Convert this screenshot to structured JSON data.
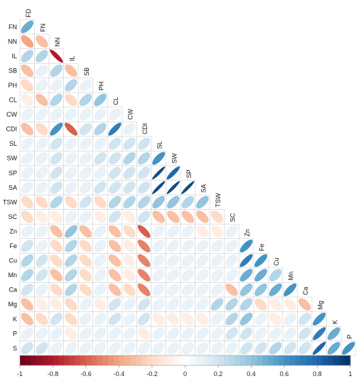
{
  "chart_data": {
    "type": "heatmap",
    "subtype": "correlogram-lower-triangle-ellipse",
    "variables": [
      "FD",
      "FN",
      "NN",
      "IL",
      "SB",
      "PH",
      "CL",
      "CW",
      "CDI",
      "SL",
      "SW",
      "SP",
      "SA",
      "TSW",
      "SC",
      "Zn",
      "Fe",
      "Cu",
      "Mn",
      "Ca",
      "Mg",
      "K",
      "P",
      "S"
    ],
    "matrix": [
      [
        0.5
      ],
      [
        -0.4,
        -0.3
      ],
      [
        0.3,
        0.3,
        -0.8
      ],
      [
        -0.3,
        0.1,
        0.3,
        -0.3
      ],
      [
        -0.2,
        0.1,
        0.1,
        0.3,
        0.1
      ],
      [
        -0.1,
        -0.3,
        0.3,
        -0.2,
        0.3,
        0.4
      ],
      [
        0.1,
        0.1,
        0.1,
        0.1,
        0.1,
        0.1,
        0.1
      ],
      [
        -0.3,
        -0.2,
        0.6,
        -0.6,
        0.2,
        0.3,
        0.7,
        0.1
      ],
      [
        0.1,
        0.1,
        0.2,
        0.1,
        0.1,
        0.1,
        0.2,
        0.2,
        0.2
      ],
      [
        0.1,
        0.1,
        0.2,
        0.1,
        0.1,
        0.2,
        0.2,
        0.3,
        0.3,
        0.6
      ],
      [
        0.1,
        0.1,
        0.2,
        0.1,
        0.1,
        0.1,
        0.2,
        0.2,
        0.2,
        0.9,
        0.8
      ],
      [
        0.1,
        0.1,
        0.2,
        0.1,
        0.1,
        0.2,
        0.2,
        0.2,
        0.2,
        0.9,
        0.9,
        0.9
      ],
      [
        -0.2,
        -0.2,
        0.3,
        -0.2,
        0.2,
        -0.2,
        0.3,
        0.3,
        0.3,
        0.4,
        0.4,
        0.3,
        0.4
      ],
      [
        -0.2,
        -0.1,
        -0.1,
        0.1,
        0.1,
        -0.1,
        0.2,
        -0.1,
        0.2,
        -0.3,
        -0.3,
        -0.3,
        -0.3,
        -0.2
      ],
      [
        0.1,
        0.1,
        -0.3,
        0.4,
        -0.3,
        0.1,
        -0.3,
        -0.2,
        -0.6,
        0.1,
        0.1,
        0.1,
        -0.1,
        -0.1,
        0.1
      ],
      [
        0.2,
        0.1,
        -0.2,
        0.3,
        -0.2,
        0.1,
        -0.3,
        -0.1,
        -0.5,
        0.1,
        0.1,
        0.1,
        0.1,
        0.1,
        0.1,
        0.6
      ],
      [
        0.3,
        0.2,
        -0.2,
        0.3,
        -0.2,
        0.1,
        -0.3,
        -0.1,
        -0.5,
        0.1,
        0.1,
        0.1,
        0.1,
        0.1,
        0.1,
        0.7,
        0.6
      ],
      [
        0.3,
        0.2,
        -0.3,
        0.3,
        -0.2,
        0.1,
        -0.3,
        -0.1,
        -0.5,
        0.1,
        0.1,
        0.1,
        0.1,
        0.1,
        0.1,
        0.5,
        0.5,
        0.3
      ],
      [
        0.2,
        0.1,
        -0.2,
        0.3,
        -0.2,
        0.1,
        -0.3,
        -0.2,
        -0.5,
        0.1,
        0.1,
        0.1,
        0.1,
        0.1,
        -0.3,
        0.4,
        0.4,
        0.5,
        0.6
      ],
      [
        -0.3,
        -0.1,
        -0.1,
        -0.2,
        0.1,
        -0.1,
        0.2,
        0.1,
        0.2,
        0.1,
        0.1,
        0.1,
        0.1,
        0.3,
        0.3,
        0.3,
        -0.2,
        -0.1,
        -0.1,
        -0.3
      ],
      [
        -0.3,
        -0.2,
        0.2,
        -0.2,
        0.1,
        0.1,
        0.2,
        0.1,
        0.2,
        -0.1,
        -0.1,
        -0.1,
        -0.1,
        0.1,
        0.3,
        0.4,
        0.1,
        -0.1,
        0.1,
        0.2,
        0.6
      ],
      [
        0.1,
        0.1,
        0.1,
        -0.1,
        0.1,
        0.1,
        0.1,
        0.1,
        -0.1,
        0.1,
        0.1,
        0.1,
        0.1,
        0.1,
        0.2,
        0.2,
        0.1,
        0.1,
        0.1,
        0.2,
        0.7,
        0.5
      ],
      [
        0.2,
        0.2,
        0.1,
        0.1,
        0.1,
        0.1,
        0.1,
        0.1,
        0.1,
        0.1,
        0.1,
        0.1,
        0.1,
        0.1,
        0.1,
        0.2,
        0.2,
        0.3,
        0.2,
        0.2,
        0.8,
        0.5,
        0.6
      ]
    ],
    "colorbar": {
      "min": -1,
      "max": 1,
      "ticks": [
        "-1",
        "-0.8",
        "-0.6",
        "-0.4",
        "-0.2",
        "0",
        "0.2",
        "0.4",
        "0.6",
        "0.8",
        "1"
      ],
      "colors": {
        "neg": "#67001F",
        "mid": "#FFFFFF",
        "pos": "#053061"
      }
    },
    "title": "",
    "xlabel": "",
    "ylabel": ""
  }
}
